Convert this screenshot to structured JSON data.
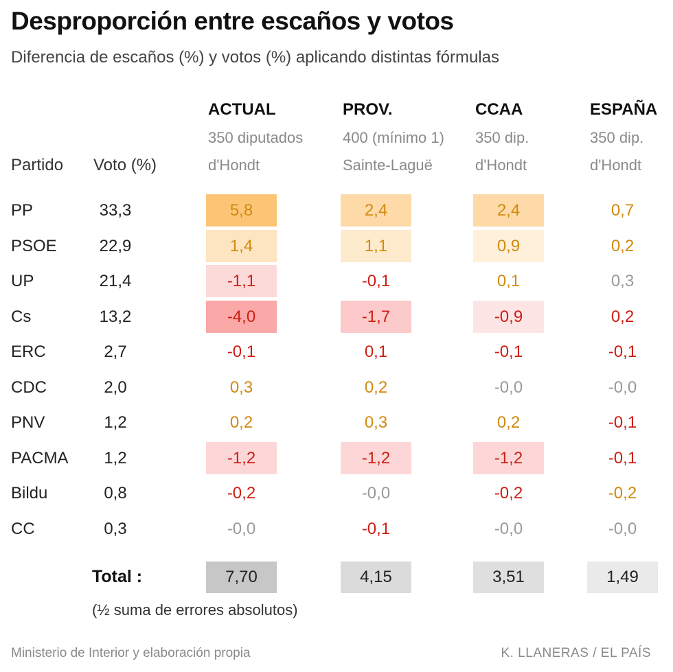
{
  "title": "Desproporción entre escaños y votos",
  "subtitle": "Diferencia de escaños (%) y votos (%) aplicando distintas fórmulas",
  "headers": {
    "party": "Partido",
    "vote": "Voto (%)"
  },
  "columns": [
    {
      "name": "ACTUAL",
      "line1": "350 diputados",
      "line2": "d'Hondt"
    },
    {
      "name": "PROV.",
      "line1": "400 (mínimo 1)",
      "line2": "Sainte-Laguë"
    },
    {
      "name": "CCAA",
      "line1": "350 dip.",
      "line2": "d'Hondt"
    },
    {
      "name": "ESPAÑA",
      "line1": "350 dip.",
      "line2": "d'Hondt"
    }
  ],
  "chart_data": {
    "type": "table",
    "title": "Desproporción entre escaños y votos",
    "subtitle": "Diferencia de escaños (%) y votos (%) aplicando distintas fórmulas",
    "categories": [
      "PP",
      "PSOE",
      "UP",
      "Cs",
      "ERC",
      "CDC",
      "PNV",
      "PACMA",
      "Bildu",
      "CC"
    ],
    "votes": [
      "33,3",
      "22,9",
      "21,4",
      "13,2",
      "2,7",
      "2,0",
      "1,2",
      "1,2",
      "0,8",
      "0,3"
    ],
    "series": [
      {
        "name": "ACTUAL",
        "values": [
          "5,8",
          "1,4",
          "-1,1",
          "-4,0",
          "-0,1",
          "0,3",
          "0,2",
          "-1,2",
          "-0,2",
          "-0,0"
        ],
        "total": "7,70"
      },
      {
        "name": "PROV.",
        "values": [
          "2,4",
          "1,1",
          "-0,1",
          "-1,7",
          "0,1",
          "0,2",
          "0,3",
          "-1,2",
          "-0,0",
          "-0,1"
        ],
        "total": "4,15"
      },
      {
        "name": "CCAA",
        "values": [
          "2,4",
          "0,9",
          "0,1",
          "-0,9",
          "-0,1",
          "-0,0",
          "0,2",
          "-1,2",
          "-0,2",
          "-0,0"
        ],
        "total": "3,51"
      },
      {
        "name": "ESPAÑA",
        "values": [
          "0,7",
          "0,2",
          "0,3",
          "0,2",
          "-0,1",
          "-0,0",
          "-0,1",
          "-0,1",
          "-0,2",
          "-0,0"
        ],
        "total": "1,49"
      }
    ],
    "text_colors": [
      [
        "orange",
        "orange",
        "red",
        "red",
        "red",
        "orange",
        "orange",
        "red",
        "red",
        "grey"
      ],
      [
        "orange",
        "orange",
        "red",
        "red",
        "red",
        "orange",
        "orange",
        "red",
        "grey",
        "red"
      ],
      [
        "orange",
        "orange",
        "orange",
        "red",
        "red",
        "grey",
        "orange",
        "red",
        "red",
        "grey"
      ],
      [
        "orange",
        "orange",
        "grey",
        "red",
        "red",
        "grey",
        "red",
        "red",
        "orange",
        "grey"
      ]
    ]
  },
  "colors": {
    "orange_text": "#d18a10",
    "red_text": "#cc1f14",
    "grey_text": "#9a9a9a"
  },
  "total": {
    "label": "Total :",
    "note": "(½ suma de errores absolutos)"
  },
  "footer": {
    "source": "Ministerio de Interior y elaboración propia",
    "credit": "K. LLANERAS  /  EL PAÍS"
  }
}
